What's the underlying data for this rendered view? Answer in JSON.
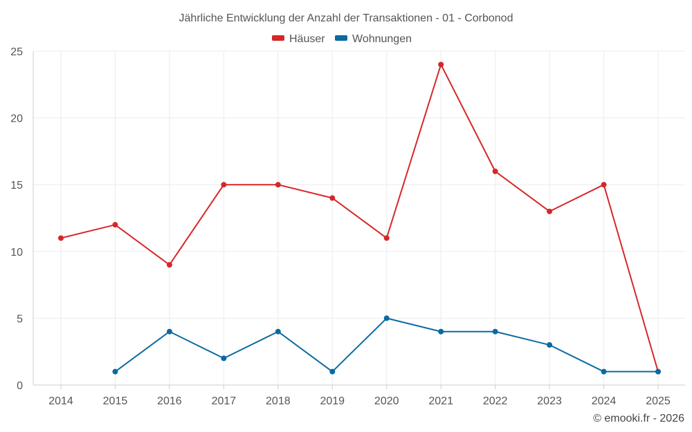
{
  "chart_data": {
    "type": "line",
    "title": "Jährliche Entwicklung der Anzahl der Transaktionen - 01 - Corbonod",
    "categories": [
      "2014",
      "2015",
      "2016",
      "2017",
      "2018",
      "2019",
      "2020",
      "2021",
      "2022",
      "2023",
      "2024",
      "2025"
    ],
    "series": [
      {
        "name": "Häuser",
        "color": "#d62728",
        "values": [
          11,
          12,
          9,
          15,
          15,
          14,
          11,
          24,
          16,
          13,
          15,
          1
        ]
      },
      {
        "name": "Wohnungen",
        "color": "#0a6aa1",
        "values": [
          null,
          1,
          4,
          2,
          4,
          1,
          5,
          4,
          4,
          3,
          1,
          1
        ]
      }
    ],
    "ylim": [
      0,
      25
    ],
    "yticks": [
      0,
      5,
      10,
      15,
      20,
      25
    ],
    "xlabel": "",
    "ylabel": "",
    "grid": true,
    "legend_position": "top-center"
  },
  "credit": "© emooki.fr - 2026"
}
